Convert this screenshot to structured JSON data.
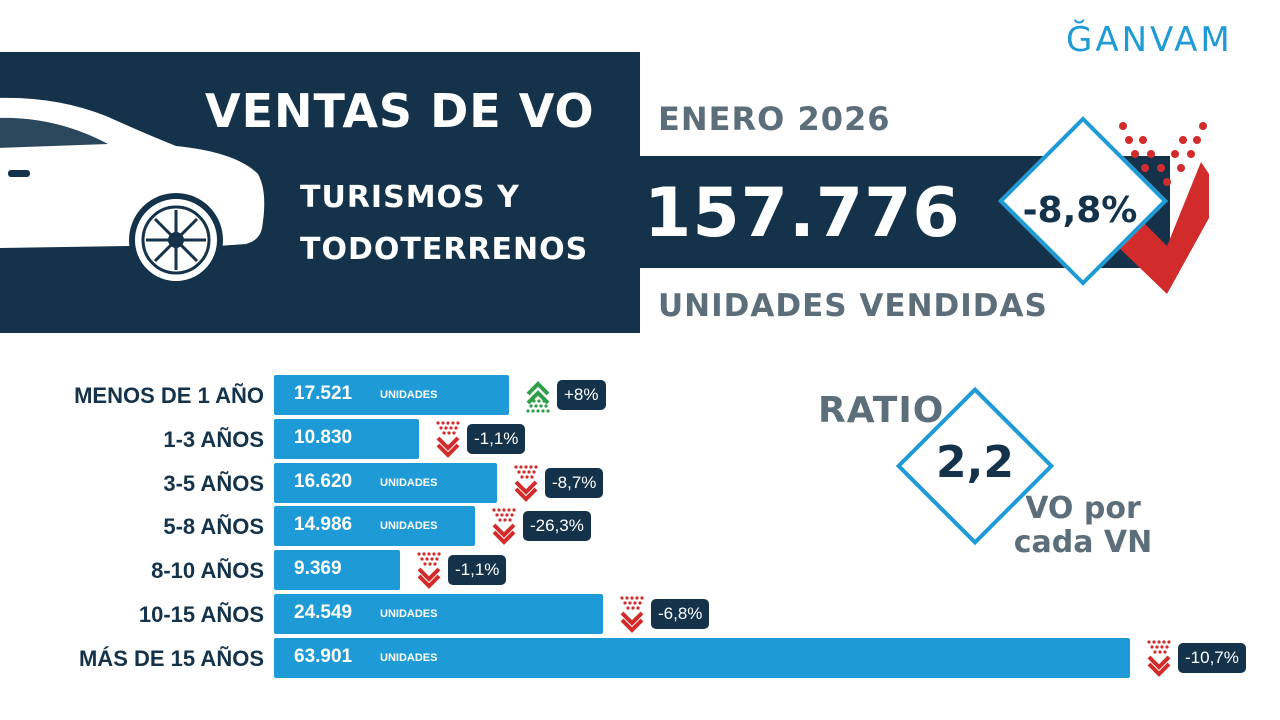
{
  "brand": {
    "logo_text": "ĞANVAM"
  },
  "header": {
    "title": "VENTAS DE VO",
    "subtitle_line1": "TURISMOS Y",
    "subtitle_line2": "TODOTERRENOS",
    "period": "ENERO 2026",
    "total_units": "157.776",
    "units_label": "UNIDADES VENDIDAS",
    "total_change": "-8,8%"
  },
  "ratio": {
    "label": "RATIO",
    "value": "2,2",
    "caption_line1": "VO por",
    "caption_line2": "cada VN"
  },
  "colors": {
    "navy": "#14334a",
    "blue": "#1e9bd7",
    "grey_text": "#5c6e79",
    "down_red": "#d22b2b",
    "up_green": "#2e9e48"
  },
  "chart_data": {
    "type": "bar",
    "orientation": "horizontal",
    "categories": [
      "MENOS DE 1 AÑO",
      "1-3 AÑOS",
      "3-5 AÑOS",
      "5-8 AÑOS",
      "8-10 AÑOS",
      "10-15 AÑOS",
      "MÁS DE 15 AÑOS"
    ],
    "values": [
      17521,
      10830,
      16620,
      14986,
      9369,
      24549,
      63901
    ],
    "value_labels": [
      "17.521",
      "10.830",
      "16.620",
      "14.986",
      "9.369",
      "24.549",
      "63.901"
    ],
    "unit_labels": [
      "UNIDADES",
      "",
      "UNIDADES",
      "UNIDADES",
      "",
      "UNIDADES",
      "UNIDADES"
    ],
    "changes": [
      "+8%",
      "-1,1%",
      "-8,7%",
      "-26,3%",
      "-1,1%",
      "-6,8%",
      "-10,7%"
    ],
    "trends": [
      "up",
      "down",
      "down",
      "down",
      "down",
      "down",
      "down"
    ]
  }
}
